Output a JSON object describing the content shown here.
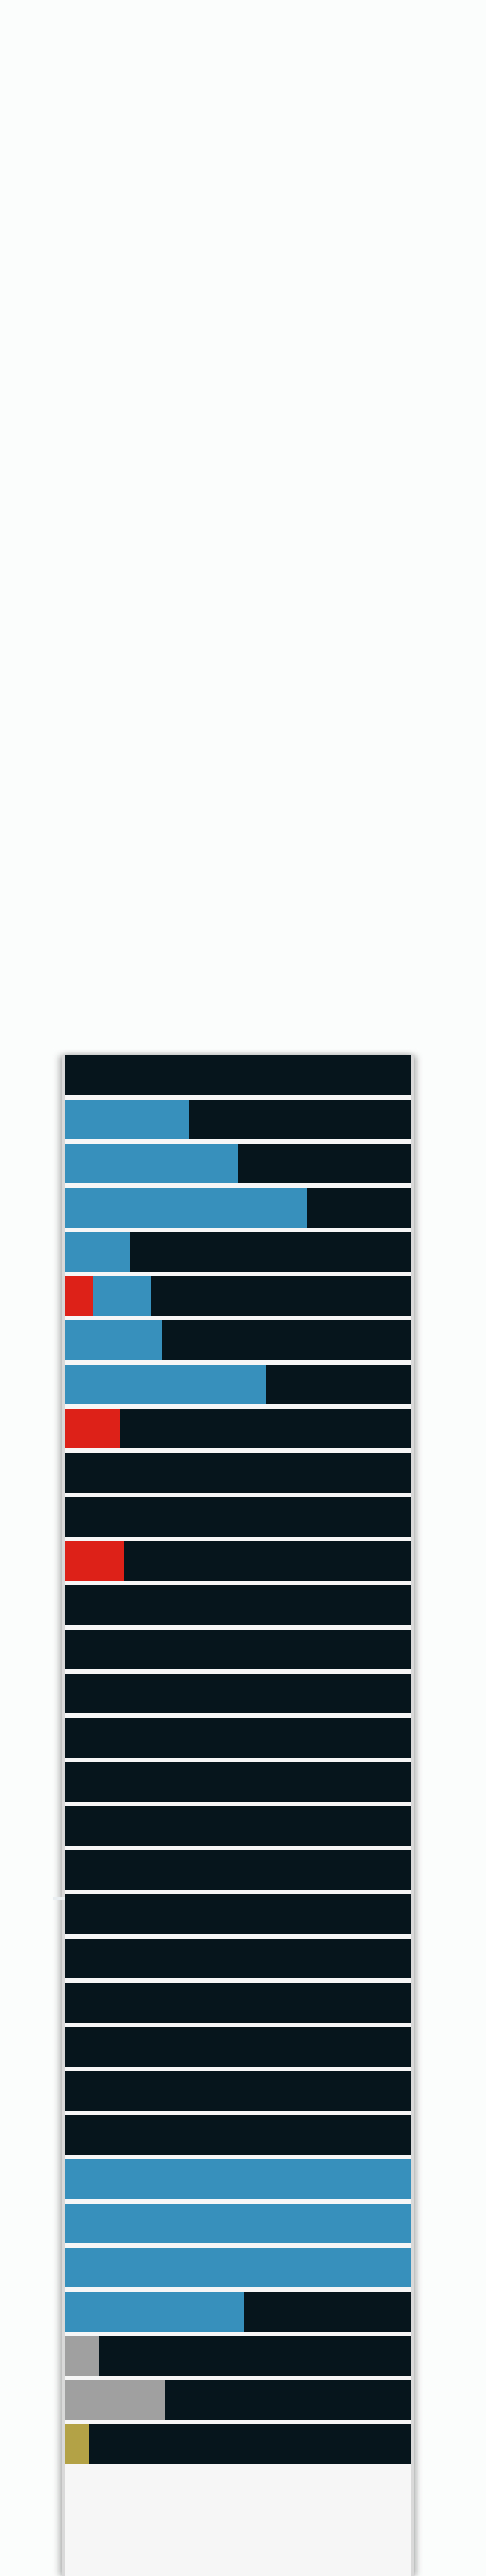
{
  "colors": {
    "background": "#fbfcfc",
    "row_background": "#06141b",
    "blue": "#3690bb",
    "red": "#dd2018",
    "gray": "#a0a0a0",
    "gold": "#b4a247"
  },
  "rows": [
    {
      "segments": []
    },
    {
      "segments": [
        {
          "color": "blue",
          "start": 0.0,
          "end": 0.36
        }
      ]
    },
    {
      "segments": [
        {
          "color": "blue",
          "start": 0.0,
          "end": 0.5
        }
      ]
    },
    {
      "segments": [
        {
          "color": "blue",
          "start": 0.0,
          "end": 0.7
        }
      ]
    },
    {
      "segments": [
        {
          "color": "blue",
          "start": 0.0,
          "end": 0.19
        }
      ]
    },
    {
      "segments": [
        {
          "color": "red",
          "start": 0.0,
          "end": 0.08
        },
        {
          "color": "blue",
          "start": 0.08,
          "end": 0.25
        }
      ]
    },
    {
      "segments": [
        {
          "color": "blue",
          "start": 0.0,
          "end": 0.28
        }
      ]
    },
    {
      "segments": [
        {
          "color": "blue",
          "start": 0.0,
          "end": 0.58
        }
      ]
    },
    {
      "segments": [
        {
          "color": "red",
          "start": 0.0,
          "end": 0.16
        }
      ]
    },
    {
      "segments": []
    },
    {
      "segments": []
    },
    {
      "segments": [
        {
          "color": "red",
          "start": 0.0,
          "end": 0.17
        }
      ]
    },
    {
      "segments": []
    },
    {
      "segments": []
    },
    {
      "segments": []
    },
    {
      "segments": []
    },
    {
      "segments": []
    },
    {
      "segments": []
    },
    {
      "segments": []
    },
    {
      "segments": []
    },
    {
      "segments": []
    },
    {
      "segments": []
    },
    {
      "segments": []
    },
    {
      "segments": []
    },
    {
      "segments": []
    },
    {
      "segments": [
        {
          "color": "blue",
          "start": 0.0,
          "end": 1.0
        }
      ]
    },
    {
      "segments": [
        {
          "color": "blue",
          "start": 0.0,
          "end": 1.0
        }
      ]
    },
    {
      "segments": [
        {
          "color": "blue",
          "start": 0.0,
          "end": 1.0
        }
      ]
    },
    {
      "segments": [
        {
          "color": "blue",
          "start": 0.0,
          "end": 0.52
        }
      ]
    },
    {
      "segments": [
        {
          "color": "gray",
          "start": 0.0,
          "end": 0.1
        }
      ]
    },
    {
      "segments": [
        {
          "color": "gray",
          "start": 0.0,
          "end": 0.29
        }
      ]
    },
    {
      "segments": [
        {
          "color": "gold",
          "start": 0.0,
          "end": 0.07
        }
      ]
    }
  ]
}
